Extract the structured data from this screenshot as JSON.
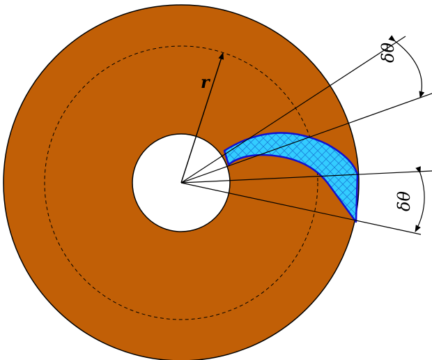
{
  "labels": {
    "radius": "r",
    "angle_top": "δθ",
    "angle_bottom": "δθ"
  },
  "colors": {
    "disk": "#c15f06",
    "hole": "#ffffff",
    "blade_fill": "#33ccff",
    "blade_edge": "#1010d0",
    "hatch": "#1a7fd8",
    "line": "#000000"
  }
}
